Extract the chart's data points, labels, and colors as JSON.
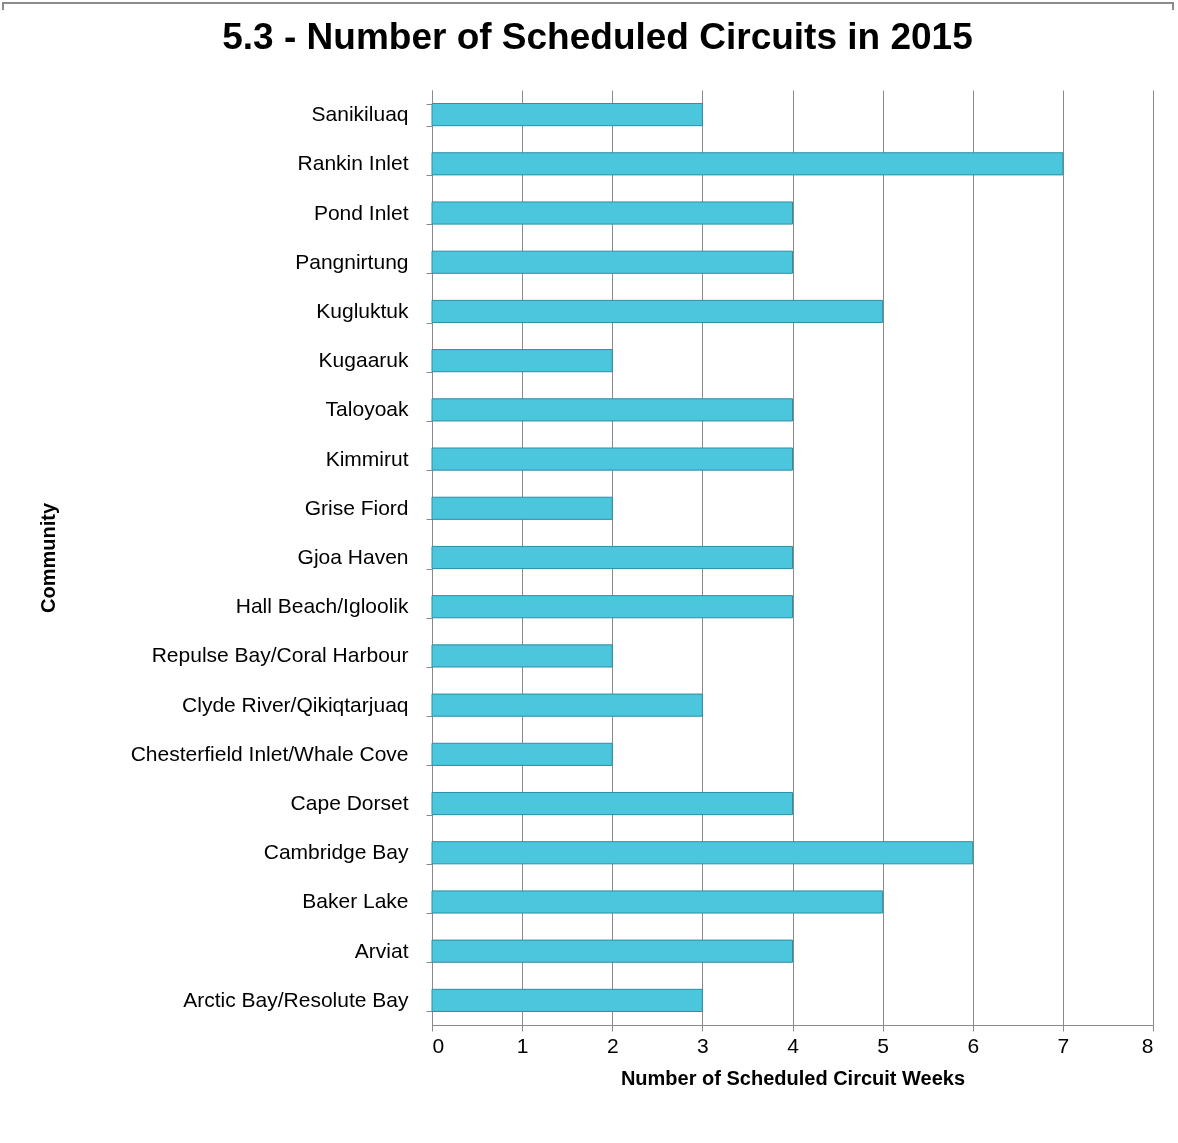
{
  "chart_data": {
    "type": "bar",
    "orientation": "horizontal",
    "title": "5.3 - Number of Scheduled Circuits in 2015",
    "xlabel": "Number of Scheduled Circuit Weeks",
    "ylabel": "Community",
    "categories": [
      "Sanikiluaq",
      "Rankin Inlet",
      "Pond Inlet",
      "Pangnirtung",
      "Kugluktuk",
      "Kugaaruk",
      "Taloyoak ",
      "Kimmirut",
      "Grise Fiord",
      "Gjoa Haven",
      "Hall Beach/Igloolik",
      "Repulse Bay/Coral Harbour",
      "Clyde River/Qikiqtarjuaq",
      "Chesterfield Inlet/Whale Cove",
      "Cape Dorset",
      "Cambridge Bay",
      "Baker Lake",
      "Arviat",
      "Arctic Bay/Resolute Bay"
    ],
    "values": [
      3,
      7,
      4,
      4,
      5,
      2,
      4,
      4,
      2,
      4,
      4,
      2,
      3,
      2,
      4,
      6,
      5,
      4,
      3
    ],
    "color": "#4bc6dd",
    "xlim": [
      0,
      8
    ],
    "xticks": [
      0,
      1,
      2,
      3,
      4,
      5,
      6,
      7,
      8
    ],
    "grid": "x"
  }
}
